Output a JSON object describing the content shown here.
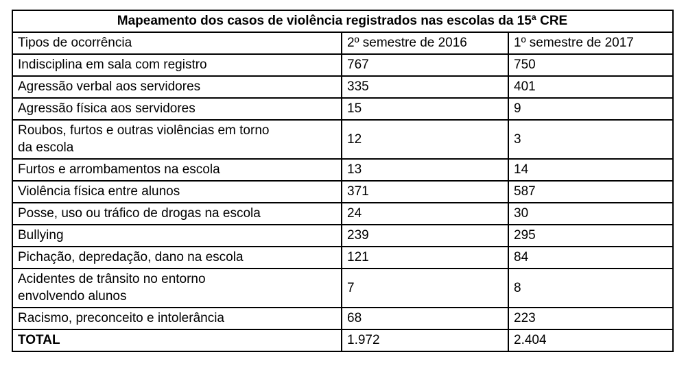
{
  "table": {
    "title": "Mapeamento dos casos de violência registrados nas escolas da 15ª CRE",
    "columns": {
      "type": "Tipos de ocorrência",
      "sem2016": "2º semestre de 2016",
      "sem2017": "1º semestre de 2017"
    },
    "rows": [
      {
        "label": "Indisciplina em sala com registro",
        "s2016": "767",
        "s2017": "750"
      },
      {
        "label": "Agressão verbal aos servidores",
        "s2016": "335",
        "s2017": "401"
      },
      {
        "label": "Agressão física aos servidores",
        "s2016": "15",
        "s2017": "9"
      },
      {
        "label": "Roubos, furtos e outras violências em torno\nda escola",
        "s2016": "12",
        "s2017": "3"
      },
      {
        "label": "Furtos e arrombamentos na escola",
        "s2016": "13",
        "s2017": "14"
      },
      {
        "label": "Violência física entre alunos",
        "s2016": "371",
        "s2017": "587"
      },
      {
        "label": "Posse, uso ou tráfico de drogas na escola",
        "s2016": "24",
        "s2017": "30"
      },
      {
        "label": "Bullying",
        "s2016": "239",
        "s2017": "295"
      },
      {
        "label": "Pichação, depredação, dano na escola",
        "s2016": "121",
        "s2017": "84"
      },
      {
        "label": "Acidentes de trânsito no entorno\nenvolvendo alunos",
        "s2016": "7",
        "s2017": "8"
      },
      {
        "label": "Racismo, preconceito e intolerância",
        "s2016": "68",
        "s2017": "223"
      }
    ],
    "total": {
      "label": "TOTAL",
      "s2016": "1.972",
      "s2017": "2.404"
    }
  },
  "colors": {
    "border": "#000000",
    "text": "#000000",
    "background": "#ffffff"
  }
}
